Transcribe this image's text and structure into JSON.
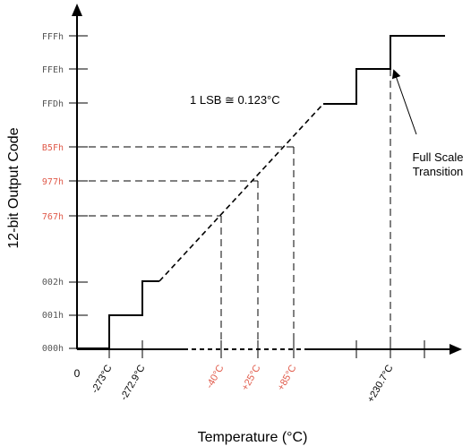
{
  "chart_data": {
    "type": "line",
    "xlabel": "Temperature (°C)",
    "ylabel": "12-bit Output Code",
    "annotation": "1 LSB  ≅ 0.123°C",
    "callout": [
      "Full Scale",
      "Transition"
    ],
    "origin_label": "0",
    "y_ticks": [
      {
        "label": "000h",
        "color": "#555555"
      },
      {
        "label": "001h",
        "color": "#555555"
      },
      {
        "label": "002h",
        "color": "#555555"
      },
      {
        "label": "767h",
        "color": "#e05a4a"
      },
      {
        "label": "977h",
        "color": "#e05a4a"
      },
      {
        "label": "B5Fh",
        "color": "#e05a4a"
      },
      {
        "label": "FFDh",
        "color": "#555555"
      },
      {
        "label": "FFEh",
        "color": "#555555"
      },
      {
        "label": "FFFh",
        "color": "#555555"
      }
    ],
    "x_ticks": [
      {
        "label": "-273°C",
        "color": "#000000"
      },
      {
        "label": "-272.9°C",
        "color": "#000000"
      },
      {
        "label": "-40°C",
        "color": "#e05a4a"
      },
      {
        "label": "+25°C",
        "color": "#e05a4a"
      },
      {
        "label": "+85°C",
        "color": "#e05a4a"
      },
      {
        "label": "+230.7°C",
        "color": "#000000"
      }
    ],
    "highlight_points": [
      {
        "x": "-40°C",
        "y": "767h"
      },
      {
        "x": "+25°C",
        "y": "977h"
      },
      {
        "x": "+85°C",
        "y": "B5Fh"
      }
    ]
  }
}
